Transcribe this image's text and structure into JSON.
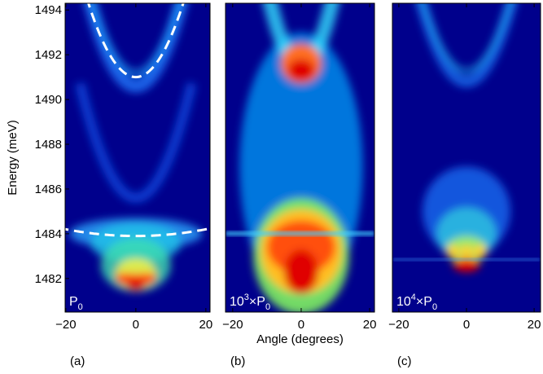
{
  "chart_data": [
    {
      "type": "heatmap",
      "panel_label": "(a)",
      "annotation": {
        "base": "P",
        "sub": "0"
      },
      "ylabel": "Energy (meV)",
      "ylim": [
        1480.5,
        1494.3
      ],
      "yticks": [
        1482,
        1484,
        1486,
        1488,
        1490,
        1492,
        1494
      ],
      "xlim": [
        -20.2,
        21.2
      ],
      "xticks": [
        {
          "value": -20,
          "label": "−20"
        },
        0,
        20
      ]
    },
    {
      "type": "heatmap",
      "panel_label": "(b)",
      "annotation": {
        "pre": "10",
        "sup": "3",
        "base": "×P",
        "sub": "0"
      },
      "xlabel": "Angle (degrees)",
      "ylim": [
        1480.5,
        1494.3
      ],
      "xlim": [
        -22.1,
        21.4
      ],
      "xticks": [
        {
          "value": -20,
          "label": "−20"
        },
        0,
        20
      ]
    },
    {
      "type": "heatmap",
      "panel_label": "(c)",
      "annotation": {
        "pre": "10",
        "sup": "4",
        "base": "×P",
        "sub": "0"
      },
      "ylim": [
        1480.5,
        1494.3
      ],
      "xlim": [
        -21.9,
        21.9
      ],
      "xticks": [
        {
          "value": -20,
          "label": "−20"
        },
        0,
        20
      ]
    }
  ]
}
